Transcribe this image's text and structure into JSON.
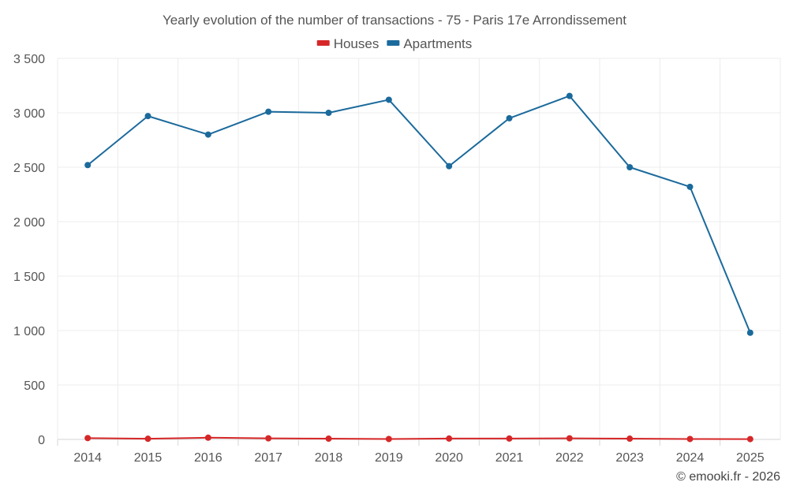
{
  "chart_data": {
    "type": "line",
    "title": "Yearly evolution of the number of transactions - 75 - Paris 17e Arrondissement",
    "categories": [
      "2014",
      "2015",
      "2016",
      "2017",
      "2018",
      "2019",
      "2020",
      "2021",
      "2022",
      "2023",
      "2024",
      "2025"
    ],
    "series": [
      {
        "name": "Houses",
        "color": "#d62728",
        "values": [
          12,
          6,
          16,
          10,
          7,
          4,
          8,
          8,
          10,
          7,
          4,
          3
        ]
      },
      {
        "name": "Apartments",
        "color": "#1b6a9c",
        "values": [
          2520,
          2970,
          2800,
          3010,
          3000,
          3120,
          2510,
          2950,
          3155,
          2500,
          2320,
          980
        ]
      }
    ],
    "ylim": [
      0,
      3500
    ],
    "yticks": [
      0,
      500,
      1000,
      1500,
      2000,
      2500,
      3000,
      3500
    ],
    "ytick_labels": [
      "0",
      "500",
      "1 000",
      "1 500",
      "2 000",
      "2 500",
      "3 000",
      "3 500"
    ],
    "xlabel": "",
    "ylabel": "",
    "legend_position": "top-center",
    "grid": true
  },
  "credit": "© emooki.fr - 2026"
}
